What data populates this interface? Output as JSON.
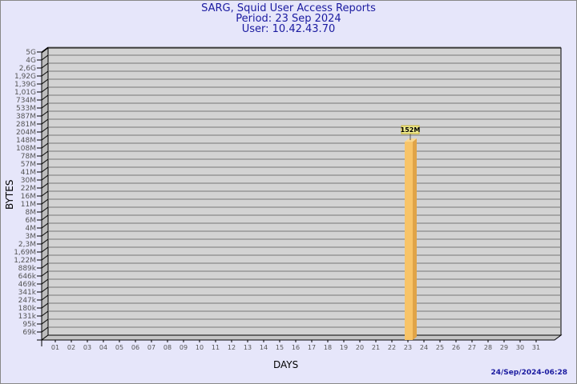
{
  "chart_data": {
    "type": "bar",
    "title": "SARG, Squid User Access Reports",
    "subtitle": [
      "Period: 23 Sep 2024",
      "User: 10.42.43.70"
    ],
    "xlabel": "DAYS",
    "ylabel": "BYTES",
    "y_scale": "log",
    "y_ticks": [
      "69k",
      "95k",
      "131k",
      "180k",
      "247k",
      "341k",
      "469k",
      "646k",
      "889k",
      "1,22M",
      "1,69M",
      "2,3M",
      "3M",
      "4M",
      "6M",
      "8M",
      "11M",
      "16M",
      "22M",
      "30M",
      "41M",
      "57M",
      "78M",
      "108M",
      "148M",
      "204M",
      "281M",
      "387M",
      "533M",
      "734M",
      "1,01G",
      "1,39G",
      "1,92G",
      "2,6G",
      "4G",
      "5G"
    ],
    "categories": [
      "01",
      "02",
      "03",
      "04",
      "05",
      "06",
      "07",
      "08",
      "09",
      "10",
      "11",
      "12",
      "13",
      "14",
      "15",
      "16",
      "17",
      "18",
      "19",
      "20",
      "21",
      "22",
      "23",
      "24",
      "25",
      "26",
      "27",
      "28",
      "29",
      "30",
      "31"
    ],
    "values": [
      {
        "day": "23",
        "bytes": 152000000,
        "label": "152M"
      }
    ],
    "grid": true,
    "colors": {
      "bar": "#f8c468",
      "bar_side": "#e0a448",
      "plot_bg": "#d3d3d3",
      "label_bg": "#f0ec90"
    }
  },
  "footer": {
    "timestamp": "24/Sep/2024-06:28"
  }
}
